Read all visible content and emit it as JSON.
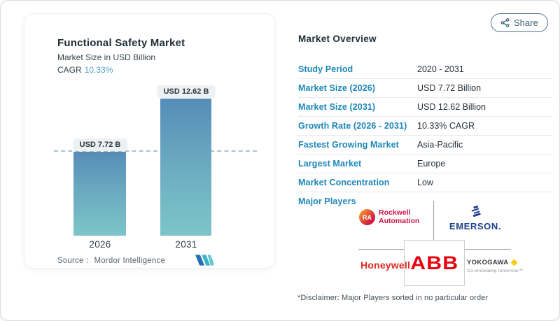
{
  "share": {
    "label": "Share"
  },
  "chart_card": {
    "title": "Functional Safety Market",
    "subtitle": "Market Size in USD Billion",
    "cagr_label": "CAGR",
    "cagr_value": "10.33%",
    "source_label": "Source :",
    "source_value": "Mordor Intelligence"
  },
  "chart_data": {
    "type": "bar",
    "title": "Functional Safety Market",
    "ylabel": "Market Size in USD Billion",
    "categories": [
      "2026",
      "2031"
    ],
    "values": [
      7.72,
      12.62
    ],
    "bar_labels": [
      "USD 7.72 B",
      "USD 12.62 B"
    ],
    "ylim": [
      0,
      12.62
    ],
    "reference_line": 7.72,
    "grid": "off",
    "colors": {
      "bar_top": "#568cb8",
      "bar_bottom": "#7dc5c9",
      "dashed_line": "#a9c4cb"
    }
  },
  "overview": {
    "title": "Market Overview",
    "rows": [
      {
        "label": "Study Period",
        "value": "2020 - 2031"
      },
      {
        "label": "Market Size (2026)",
        "value": "USD 7.72 Billion"
      },
      {
        "label": "Market Size (2031)",
        "value": "USD 12.62 Billion"
      },
      {
        "label": "Growth Rate (2026 - 2031)",
        "value": "10.33% CAGR"
      },
      {
        "label": "Fastest Growing Market",
        "value": "Asia-Pacific"
      },
      {
        "label": "Largest Market",
        "value": "Europe"
      },
      {
        "label": "Market Concentration",
        "value": "Low"
      }
    ],
    "major_players_label": "Major Players",
    "disclaimer": "*Disclaimer: Major Players sorted in no particular order"
  },
  "logos": {
    "rockwell": {
      "badge": "RA",
      "line1": "Rockwell",
      "line2": "Automation"
    },
    "emerson": {
      "text": "EMERSON."
    },
    "honeywell": {
      "text": "Honeywell"
    },
    "abb": {
      "text": "ABB"
    },
    "yokogawa": {
      "text": "YOKOGAWA",
      "tagline": "Co-innovating tomorrow™"
    }
  }
}
